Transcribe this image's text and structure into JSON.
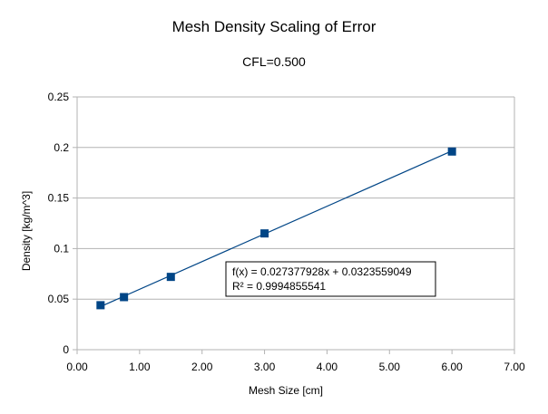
{
  "chart_data": {
    "type": "scatter",
    "title": "Mesh Density Scaling of Error",
    "subtitle": "CFL=0.500",
    "xlabel": "Mesh Size [cm]",
    "ylabel": "Density [kg/m^3]",
    "xlim": [
      0,
      7
    ],
    "ylim": [
      0,
      0.25
    ],
    "x_ticks": [
      "0.00",
      "1.00",
      "2.00",
      "3.00",
      "4.00",
      "5.00",
      "6.00",
      "7.00"
    ],
    "y_ticks": [
      "0",
      "0.05",
      "0.1",
      "0.15",
      "0.2",
      "0.25"
    ],
    "grid": "horizontal",
    "series": [
      {
        "x": [
          0.375,
          0.75,
          1.5,
          3.0,
          6.0
        ],
        "y": [
          0.044,
          0.052,
          0.072,
          0.115,
          0.196
        ],
        "color": "#004586",
        "marker": "square"
      }
    ],
    "trendline": {
      "type": "linear",
      "slope": 0.027377928,
      "intercept": 0.0323559049,
      "color": "#004586",
      "equation": "f(x) = 0.027377928x + 0.0323559049",
      "r_squared": "R² = 0.9994855541"
    }
  }
}
